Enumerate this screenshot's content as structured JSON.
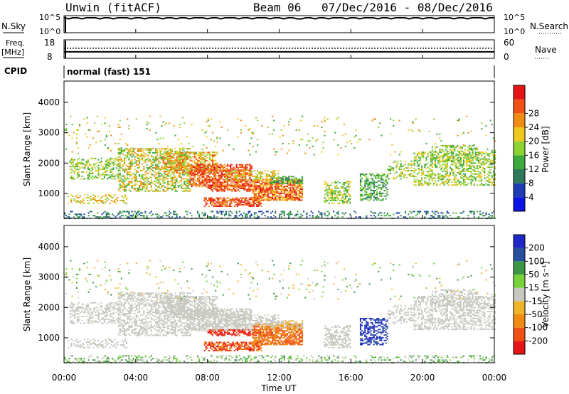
{
  "header": {
    "radar": "Unwin (fitACF)",
    "beam": "Beam 06",
    "dates": "07/Dec/2016 - 08/Dec/2016"
  },
  "panel_labels": {
    "nsky": "N.Sky",
    "nsearch": "N.Search",
    "freq_line1": "Freq.",
    "freq_line2": "[MHz]",
    "nave": "Nave",
    "cpid": "CPID",
    "cpid_value": "normal (fast) 151"
  },
  "colors": {
    "power_scale": [
      "#0a14e6",
      "#1e3cb4",
      "#2d7a5a",
      "#3caa3c",
      "#8cd232",
      "#f0c81e",
      "#f08c14",
      "#f05014",
      "#e61414"
    ],
    "velocity_scale": [
      "#e61414",
      "#f05014",
      "#f08c14",
      "#f0b428",
      "#c8c8c0",
      "#78d23c",
      "#3c9646",
      "#2850a0",
      "#1e28c8"
    ]
  },
  "chart_data": [
    {
      "type": "line",
      "name": "noise-search panel",
      "ylabel": "N.Sky",
      "y2label": "N.Search",
      "yticks": [
        "10^5",
        "10^0"
      ],
      "y2ticks": [
        "10^5",
        "10^0"
      ],
      "ylim": [
        0,
        5
      ],
      "values_note": "",
      "x": [
        0,
        4,
        8,
        12,
        16,
        20,
        24
      ],
      "series": [
        {
          "name": "N.Sky",
          "values": [
            5,
            5,
            5,
            5,
            5,
            5,
            5
          ]
        }
      ]
    },
    {
      "type": "line",
      "name": "frequency panel",
      "ylabel": "Freq. [MHz]",
      "y2label": "Nave",
      "yticks": [
        "18",
        "8"
      ],
      "y2ticks": [
        "60",
        "0"
      ],
      "ylim": [
        8,
        18
      ],
      "y2lim": [
        0,
        60
      ],
      "x": [
        0,
        24
      ],
      "series": [
        {
          "name": "Freq.",
          "values": [
            11.5,
            11.5
          ]
        },
        {
          "name": "Nave",
          "values": [
            33,
            33
          ]
        }
      ]
    },
    {
      "type": "heatmap",
      "name": "power",
      "ylabel": "Slant Range [km]",
      "colorbar_label": "Power [dB]",
      "colorbar_ticks": [
        4,
        8,
        12,
        16,
        20,
        24,
        28
      ],
      "yticks": [
        1000,
        2000,
        3000,
        4000
      ],
      "ylim": [
        180,
        4700
      ],
      "xlim": [
        0,
        24
      ],
      "xticks": [
        "00:00",
        "04:00",
        "08:00",
        "12:00",
        "16:00",
        "20:00",
        "00:00"
      ]
    },
    {
      "type": "heatmap",
      "name": "velocity",
      "ylabel": "Slant Range [km]",
      "colorbar_label": "Velocity [m s⁻¹]",
      "colorbar_ticks": [
        200,
        100,
        50,
        15,
        -15,
        -50,
        -100,
        -200
      ],
      "yticks": [
        1000,
        2000,
        3000,
        4000
      ],
      "ylim": [
        180,
        4700
      ],
      "xlim": [
        0,
        24
      ],
      "xticks": [
        "00:00",
        "04:00",
        "08:00",
        "12:00",
        "16:00",
        "20:00",
        "00:00"
      ],
      "xlabel": "Time UT"
    }
  ],
  "axis": {
    "xticks": [
      "00:00",
      "04:00",
      "08:00",
      "12:00",
      "16:00",
      "20:00",
      "00:00"
    ],
    "xlabel": "Time UT",
    "range_label": "Slant Range [km]",
    "range_ticks": [
      "1000",
      "2000",
      "3000",
      "4000"
    ],
    "power_label": "Power [dB]",
    "power_ticks": [
      "4",
      "8",
      "12",
      "16",
      "20",
      "24",
      "28"
    ],
    "velocity_label": "Velocity [m s⁻¹]",
    "velocity_ticks": [
      "200",
      "100",
      "50",
      "15",
      "-15",
      "-50",
      "-100",
      "-200"
    ],
    "nsky_ticks": [
      "10^5",
      "10^0"
    ],
    "nsearch_ticks": [
      "10^5",
      "10^0"
    ],
    "freq_ticks": [
      "18",
      "8"
    ],
    "nave_ticks": [
      "60",
      "0"
    ]
  }
}
